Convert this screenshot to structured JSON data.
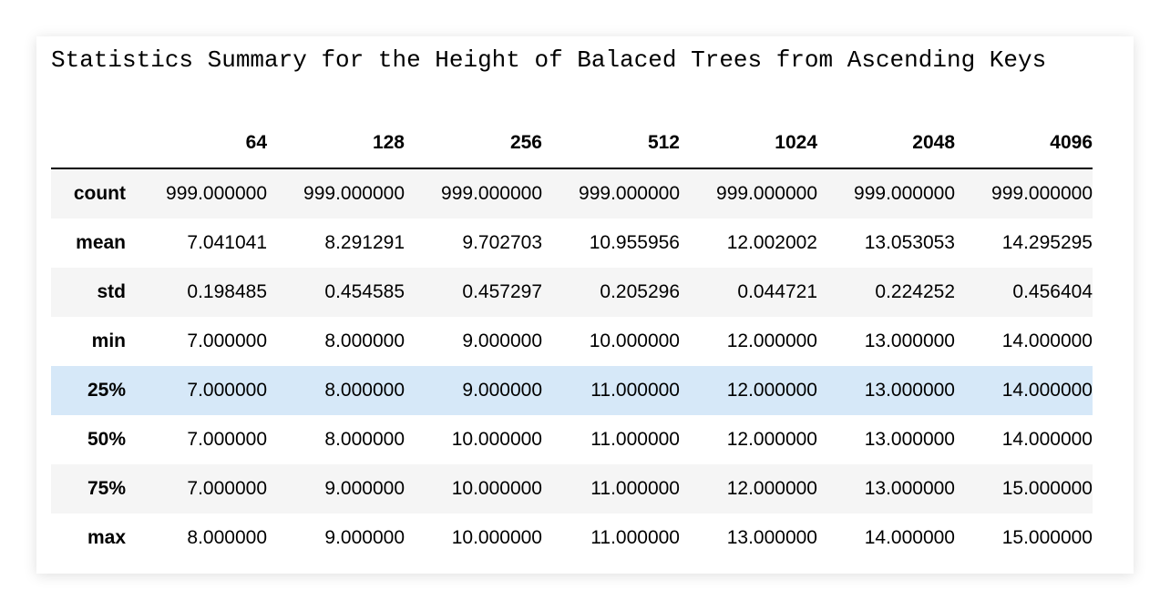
{
  "caption": "Statistics Summary for the Height of Balaced Trees from Ascending Keys",
  "columns": [
    "64",
    "128",
    "256",
    "512",
    "1024",
    "2048",
    "4096"
  ],
  "rows": [
    {
      "label": "count",
      "values": [
        "999.000000",
        "999.000000",
        "999.000000",
        "999.000000",
        "999.000000",
        "999.000000",
        "999.000000"
      ]
    },
    {
      "label": "mean",
      "values": [
        "7.041041",
        "8.291291",
        "9.702703",
        "10.955956",
        "12.002002",
        "13.053053",
        "14.295295"
      ]
    },
    {
      "label": "std",
      "values": [
        "0.198485",
        "0.454585",
        "0.457297",
        "0.205296",
        "0.044721",
        "0.224252",
        "0.456404"
      ]
    },
    {
      "label": "min",
      "values": [
        "7.000000",
        "8.000000",
        "9.000000",
        "10.000000",
        "12.000000",
        "13.000000",
        "14.000000"
      ]
    },
    {
      "label": "25%",
      "values": [
        "7.000000",
        "8.000000",
        "9.000000",
        "11.000000",
        "12.000000",
        "13.000000",
        "14.000000"
      ]
    },
    {
      "label": "50%",
      "values": [
        "7.000000",
        "8.000000",
        "10.000000",
        "11.000000",
        "12.000000",
        "13.000000",
        "14.000000"
      ]
    },
    {
      "label": "75%",
      "values": [
        "7.000000",
        "9.000000",
        "10.000000",
        "11.000000",
        "12.000000",
        "13.000000",
        "15.000000"
      ]
    },
    {
      "label": "max",
      "values": [
        "8.000000",
        "9.000000",
        "10.000000",
        "11.000000",
        "13.000000",
        "14.000000",
        "15.000000"
      ]
    }
  ],
  "highlighted_row": "25%",
  "colors": {
    "stripe": "#f5f5f5",
    "highlight": "#d6e8f8"
  }
}
